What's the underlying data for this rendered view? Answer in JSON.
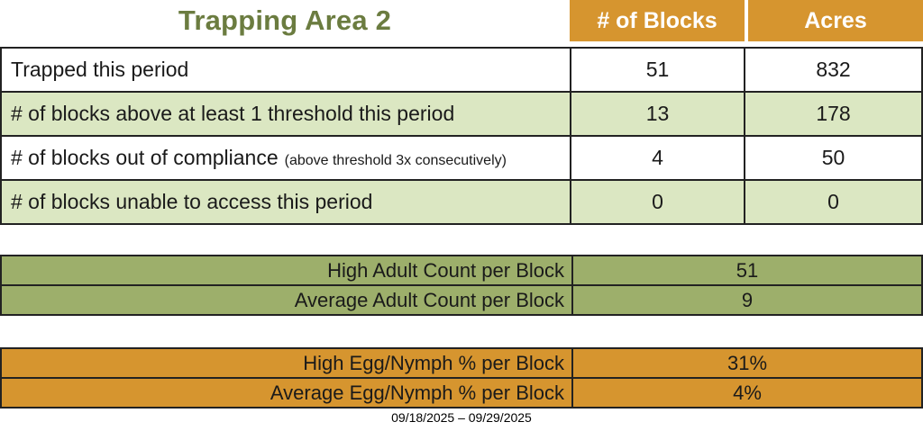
{
  "title": "Trapping Area 2",
  "columns": {
    "blocks": "# of Blocks",
    "acres": "Acres"
  },
  "summary_table": {
    "rows": [
      {
        "label": "Trapped this period",
        "note": "",
        "blocks": "51",
        "acres": "832"
      },
      {
        "label": "# of blocks above at least 1 threshold this period",
        "note": "",
        "blocks": "13",
        "acres": "178"
      },
      {
        "label": "# of blocks out of compliance",
        "note": "(above threshold 3x consecutively)",
        "blocks": "4",
        "acres": "50"
      },
      {
        "label": "# of blocks unable to access this period",
        "note": "",
        "blocks": "0",
        "acres": "0"
      }
    ]
  },
  "adult_table": {
    "rows": [
      {
        "label": "High Adult Count per Block",
        "value": "51"
      },
      {
        "label": "Average Adult Count per Block",
        "value": "9"
      }
    ]
  },
  "egg_table": {
    "rows": [
      {
        "label": "High Egg/Nymph % per Block",
        "value": "31%"
      },
      {
        "label": "Average Egg/Nymph % per Block",
        "value": "4%"
      }
    ]
  },
  "footer": {
    "date_range": "09/18/2025 – 09/29/2025"
  },
  "colors": {
    "header_orange": "#D6952F",
    "light_green": "#DBE7C2",
    "olive_green": "#9DAF6B",
    "title_green": "#6B7C40",
    "header_text": "#FFFFFF",
    "border": "#222222"
  }
}
